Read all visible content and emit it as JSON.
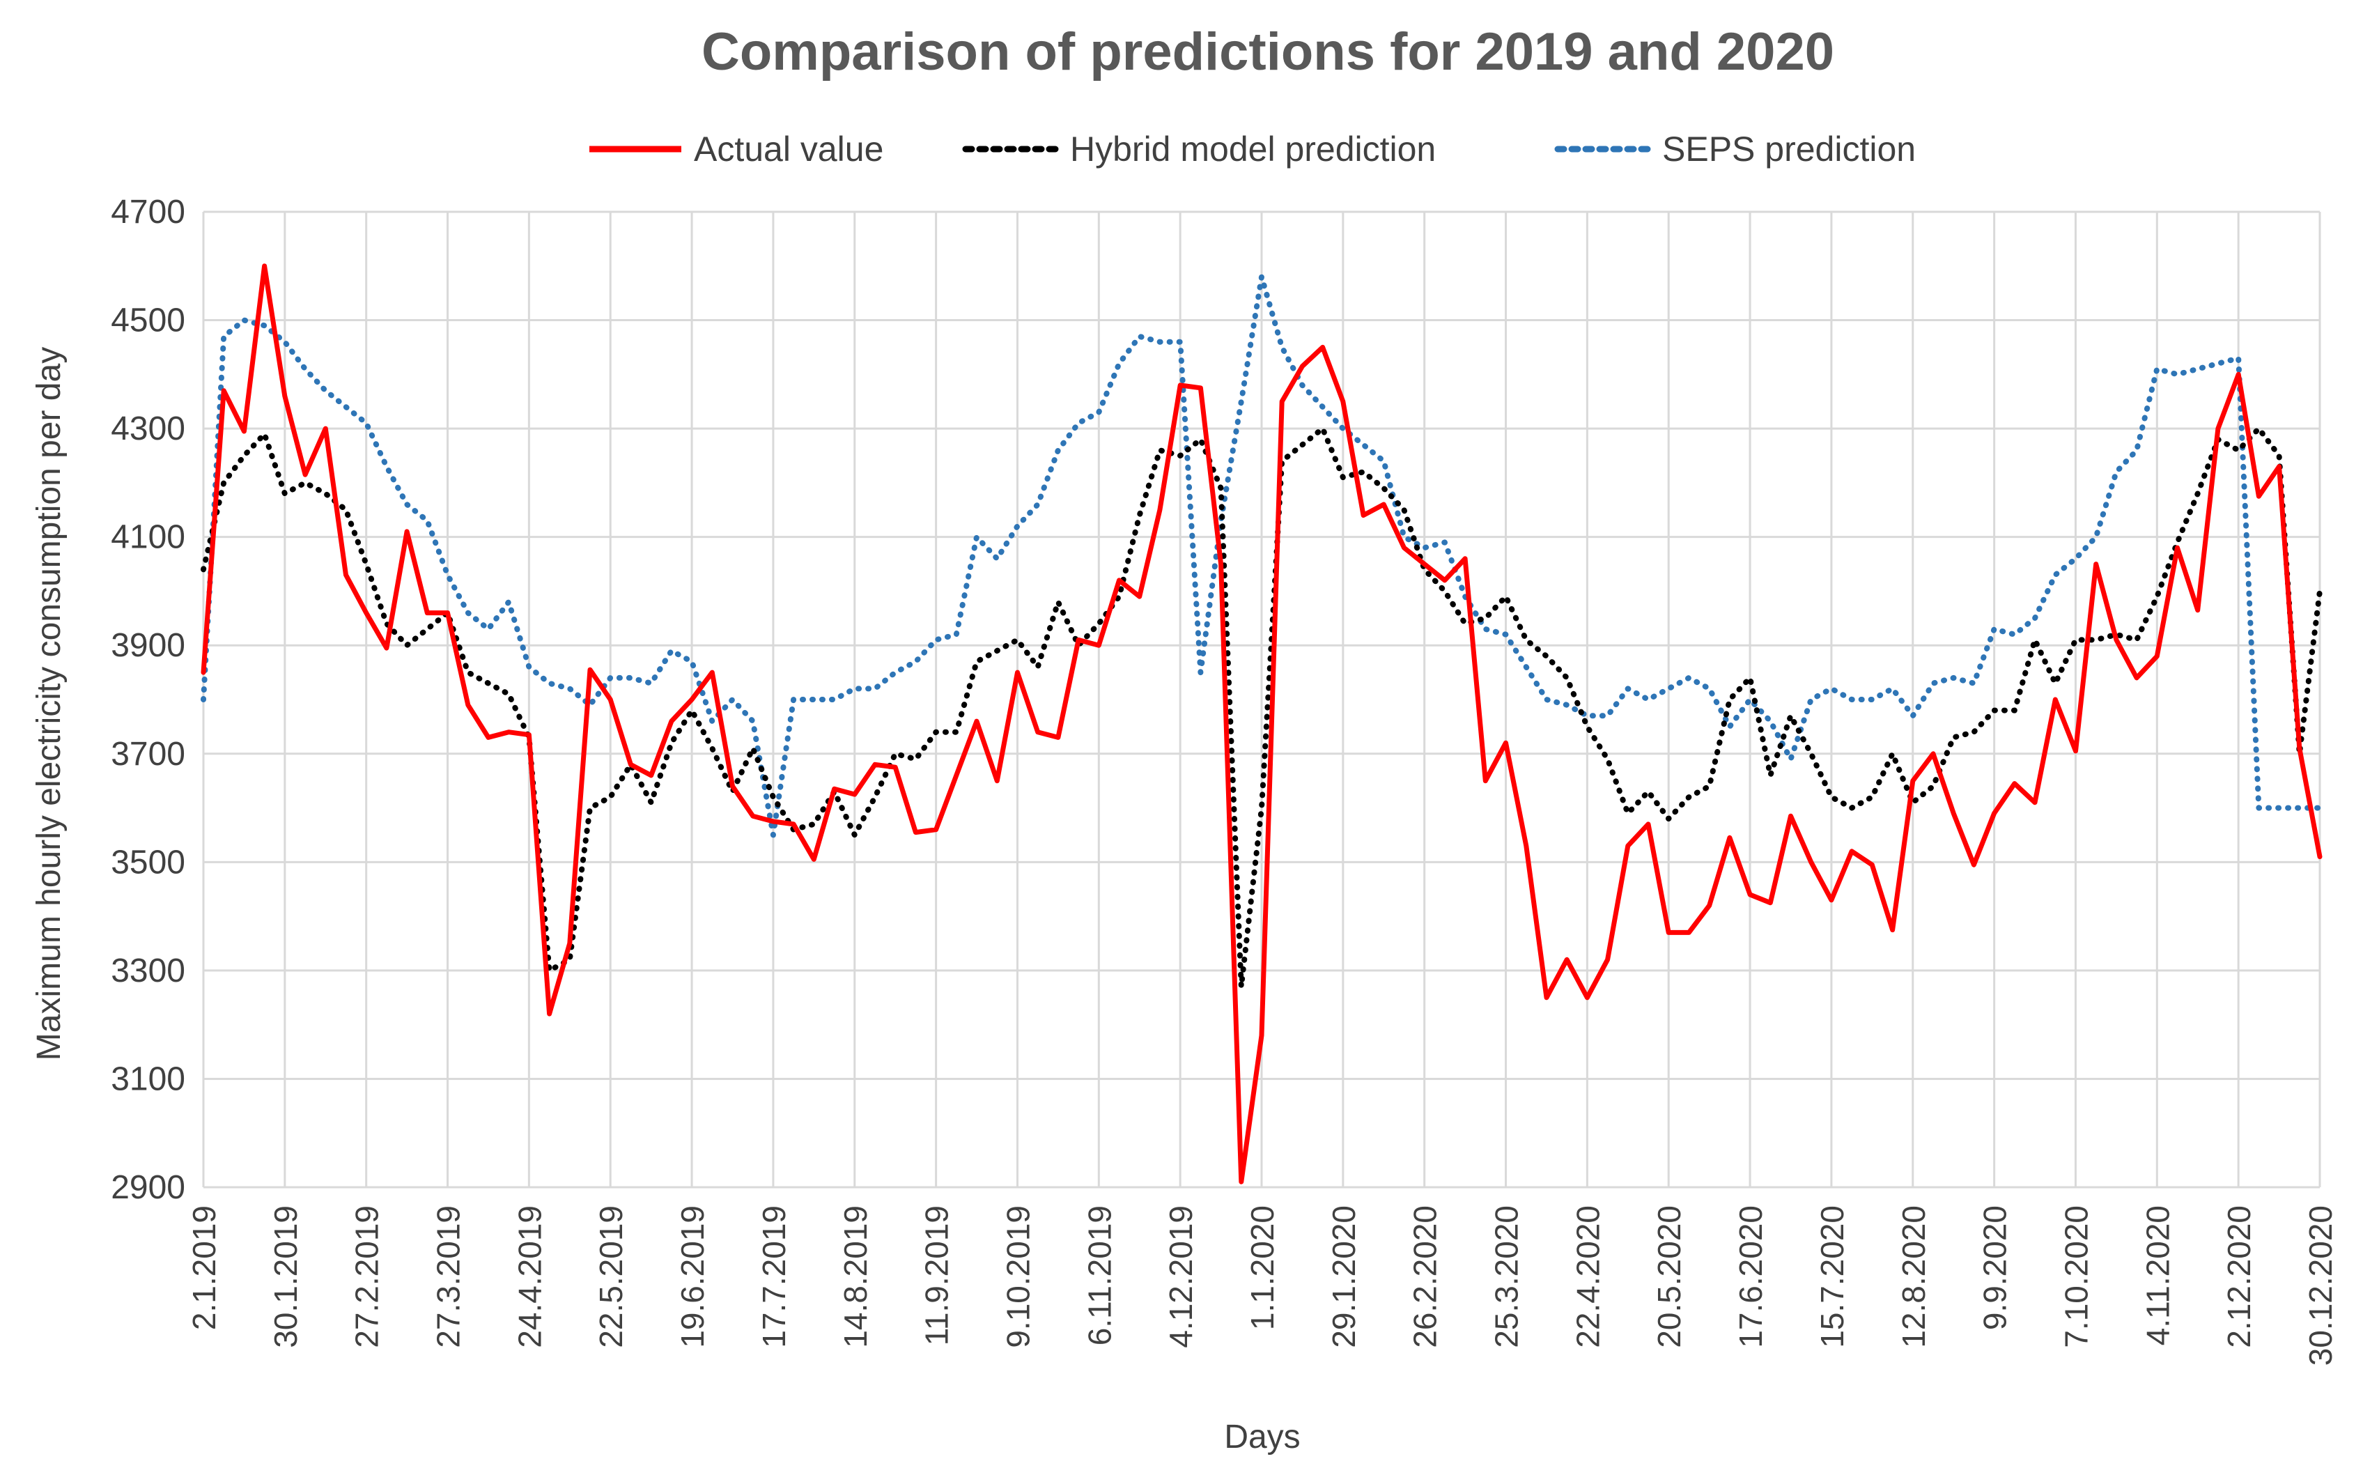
{
  "chart_data": {
    "type": "line",
    "title": "Comparison of predictions for 2019 and 2020",
    "xlabel": "Days",
    "ylabel": "Maximum hourly electricity consumption per day",
    "ylim": [
      2900,
      4700
    ],
    "yticks": [
      2900,
      3100,
      3300,
      3500,
      3700,
      3900,
      4100,
      4300,
      4500,
      4700
    ],
    "xticks": [
      "2.1.2019",
      "30.1.2019",
      "27.2.2019",
      "27.3.2019",
      "24.4.2019",
      "22.5.2019",
      "19.6.2019",
      "17.7.2019",
      "14.8.2019",
      "11.9.2019",
      "9.10.2019",
      "6.11.2019",
      "4.12.2019",
      "1.1.2020",
      "29.1.2020",
      "26.2.2020",
      "25.3.2020",
      "22.4.2020",
      "20.5.2020",
      "17.6.2020",
      "15.7.2020",
      "12.8.2020",
      "9.9.2020",
      "7.10.2020",
      "4.11.2020",
      "2.12.2020",
      "30.12.2020"
    ],
    "x_index_note": "x values are week index from 0 (2.1.2019) to 104 (30.12.2020); each tick spans 4 weeks",
    "grid": true,
    "legend_position": "top",
    "series": [
      {
        "name": "Actual value",
        "color": "#ff0000",
        "style": "solid",
        "values": [
          3850,
          4370,
          4295,
          4600,
          4360,
          4215,
          4300,
          4030,
          3960,
          3895,
          4110,
          3960,
          3960,
          3790,
          3730,
          3740,
          3735,
          3220,
          3350,
          3855,
          3800,
          3680,
          3660,
          3760,
          3800,
          3850,
          3640,
          3585,
          3575,
          3570,
          3505,
          3635,
          3625,
          3680,
          3675,
          3555,
          3560,
          3660,
          3760,
          3650,
          3850,
          3740,
          3730,
          3910,
          3900,
          4020,
          3990,
          4150,
          4380,
          4375,
          4050,
          2910,
          3180,
          4350,
          4415,
          4450,
          4350,
          4140,
          4160,
          4080,
          4050,
          4020,
          4060,
          3650,
          3720,
          3530,
          3250,
          3320,
          3250,
          3320,
          3530,
          3570,
          3370,
          3370,
          3420,
          3545,
          3440,
          3425,
          3585,
          3500,
          3430,
          3520,
          3495,
          3375,
          3650,
          3700,
          3590,
          3495,
          3590,
          3645,
          3610,
          3800,
          3705,
          4050,
          3910,
          3840,
          3880,
          4080,
          3965,
          4300,
          4400,
          4175,
          4230,
          3710,
          3510
        ]
      },
      {
        "name": "Hybrid model prediction",
        "color": "#000000",
        "style": "dotted",
        "values": [
          4040,
          4200,
          4250,
          4290,
          4180,
          4200,
          4180,
          4150,
          4050,
          3940,
          3900,
          3930,
          3960,
          3850,
          3830,
          3810,
          3730,
          3300,
          3320,
          3600,
          3620,
          3680,
          3610,
          3720,
          3780,
          3710,
          3630,
          3710,
          3620,
          3560,
          3570,
          3630,
          3550,
          3620,
          3700,
          3690,
          3740,
          3740,
          3870,
          3890,
          3910,
          3860,
          3980,
          3900,
          3940,
          3990,
          4140,
          4260,
          4250,
          4280,
          4190,
          3270,
          3600,
          4240,
          4270,
          4300,
          4210,
          4220,
          4190,
          4150,
          4040,
          4000,
          3940,
          3950,
          3990,
          3910,
          3880,
          3840,
          3750,
          3690,
          3590,
          3630,
          3580,
          3620,
          3640,
          3800,
          3840,
          3660,
          3770,
          3700,
          3620,
          3600,
          3620,
          3700,
          3610,
          3640,
          3730,
          3740,
          3780,
          3780,
          3910,
          3830,
          3910,
          3910,
          3920,
          3910,
          3990,
          4090,
          4180,
          4280,
          4260,
          4300,
          4250,
          3700,
          4000
        ]
      },
      {
        "name": "SEPS prediction",
        "color": "#2e75b6",
        "style": "dotted",
        "values": [
          3800,
          4470,
          4500,
          4490,
          4460,
          4410,
          4370,
          4340,
          4310,
          4230,
          4160,
          4130,
          4030,
          3960,
          3930,
          3980,
          3860,
          3830,
          3820,
          3790,
          3840,
          3840,
          3830,
          3890,
          3870,
          3760,
          3800,
          3760,
          3550,
          3800,
          3800,
          3800,
          3820,
          3820,
          3850,
          3870,
          3910,
          3920,
          4100,
          4060,
          4120,
          4160,
          4260,
          4310,
          4330,
          4420,
          4470,
          4460,
          4460,
          3850,
          4130,
          4350,
          4580,
          4450,
          4380,
          4340,
          4300,
          4270,
          4240,
          4100,
          4080,
          4090,
          3990,
          3930,
          3920,
          3860,
          3800,
          3790,
          3770,
          3770,
          3820,
          3800,
          3820,
          3840,
          3820,
          3750,
          3800,
          3760,
          3690,
          3800,
          3820,
          3800,
          3800,
          3820,
          3770,
          3830,
          3840,
          3830,
          3930,
          3920,
          3950,
          4030,
          4060,
          4100,
          4220,
          4260,
          4410,
          4400,
          4410,
          4420,
          4430,
          3600,
          3600,
          3600,
          3600
        ]
      }
    ]
  }
}
